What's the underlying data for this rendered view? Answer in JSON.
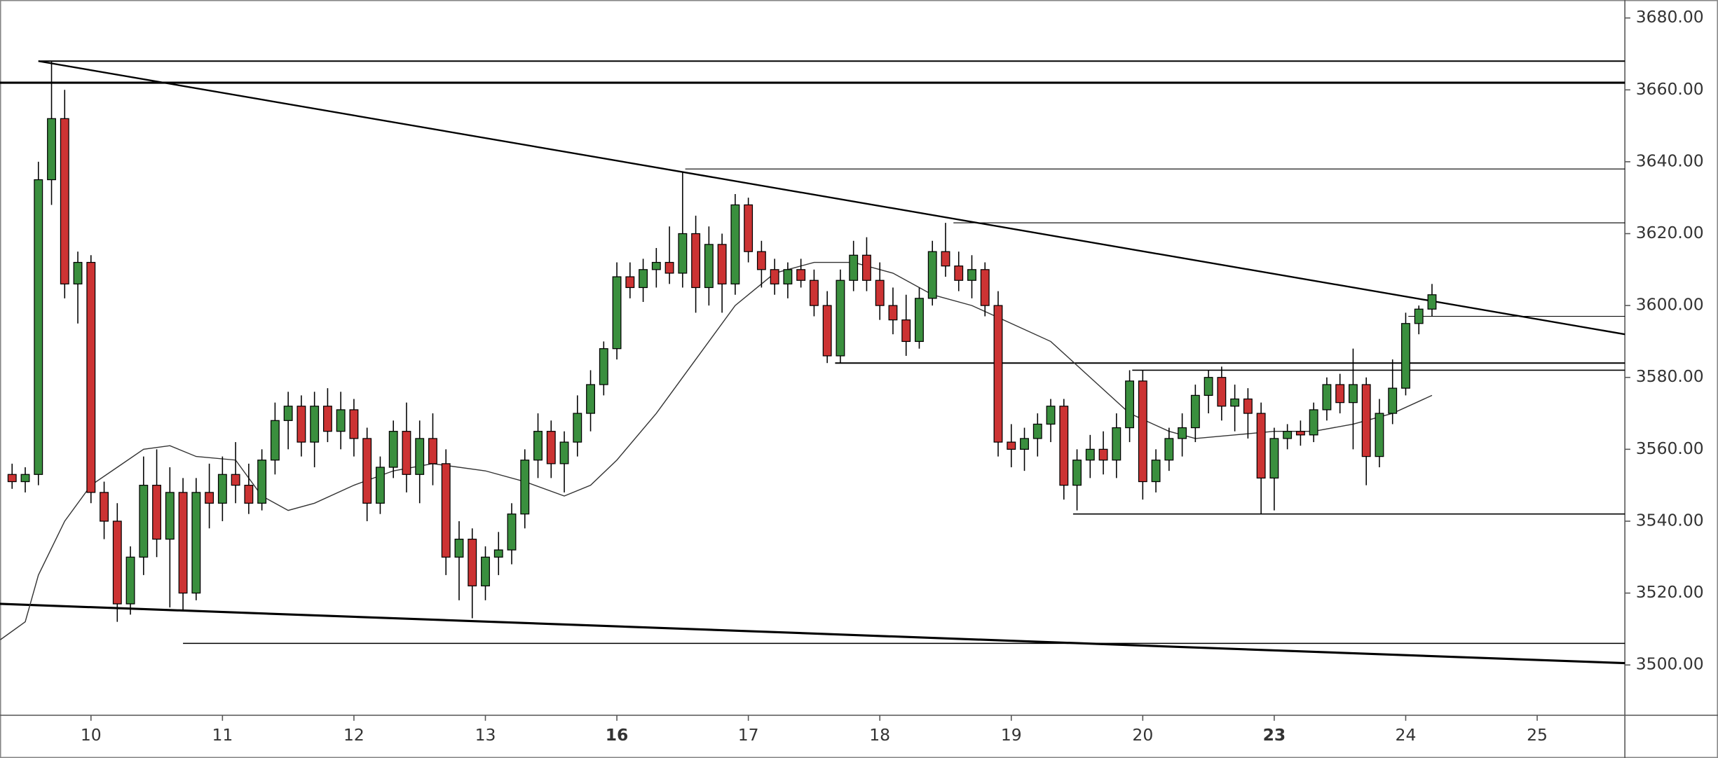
{
  "chart_data": {
    "type": "candlestick",
    "xlim": [
      -0.692,
      11.667
    ],
    "ylim": [
      3486,
      3685
    ],
    "xticks": [
      {
        "value": 0,
        "label": "10"
      },
      {
        "value": 1,
        "label": "11"
      },
      {
        "value": 2,
        "label": "12"
      },
      {
        "value": 3,
        "label": "13"
      },
      {
        "value": 4,
        "label": "16"
      },
      {
        "value": 5,
        "label": "17"
      },
      {
        "value": 6,
        "label": "18"
      },
      {
        "value": 7,
        "label": "19"
      },
      {
        "value": 8,
        "label": "20"
      },
      {
        "value": 9,
        "label": "23"
      },
      {
        "value": 10,
        "label": "24"
      },
      {
        "value": 11,
        "label": "25"
      }
    ],
    "bold_xticks": [
      4,
      9
    ],
    "yticks": [
      {
        "value": 3500,
        "label": "3500.00"
      },
      {
        "value": 3520,
        "label": "3520.00"
      },
      {
        "value": 3540,
        "label": "3540.00"
      },
      {
        "value": 3560,
        "label": "3560.00"
      },
      {
        "value": 3580,
        "label": "3580.00"
      },
      {
        "value": 3600,
        "label": "3600.00"
      },
      {
        "value": 3620,
        "label": "3620.00"
      },
      {
        "value": 3640,
        "label": "3640.00"
      },
      {
        "value": 3660,
        "label": "3660.00"
      },
      {
        "value": 3680,
        "label": "3680.00"
      }
    ],
    "up_color": "#3a8f3e",
    "down_color": "#cc3333",
    "wick_color": "#000000",
    "candles": [
      [
        -0.6,
        3553,
        3556,
        3549,
        3551
      ],
      [
        -0.5,
        3551,
        3555,
        3548,
        3553
      ],
      [
        -0.4,
        3553,
        3640,
        3550,
        3635
      ],
      [
        -0.3,
        3635,
        3668,
        3628,
        3652
      ],
      [
        -0.2,
        3652,
        3660,
        3602,
        3606
      ],
      [
        -0.1,
        3606,
        3615,
        3595,
        3612
      ],
      [
        0.0,
        3612,
        3614,
        3545,
        3548
      ],
      [
        0.1,
        3548,
        3551,
        3535,
        3540
      ],
      [
        0.2,
        3540,
        3545,
        3512,
        3517
      ],
      [
        0.3,
        3517,
        3533,
        3514,
        3530
      ],
      [
        0.4,
        3530,
        3558,
        3525,
        3550
      ],
      [
        0.5,
        3550,
        3560,
        3530,
        3535
      ],
      [
        0.6,
        3535,
        3555,
        3516,
        3548
      ],
      [
        0.7,
        3548,
        3552,
        3515,
        3520
      ],
      [
        0.8,
        3520,
        3552,
        3518,
        3548
      ],
      [
        0.9,
        3548,
        3556,
        3538,
        3545
      ],
      [
        1.0,
        3545,
        3558,
        3540,
        3553
      ],
      [
        1.1,
        3553,
        3562,
        3545,
        3550
      ],
      [
        1.2,
        3550,
        3556,
        3542,
        3545
      ],
      [
        1.3,
        3545,
        3560,
        3543,
        3557
      ],
      [
        1.4,
        3557,
        3573,
        3553,
        3568
      ],
      [
        1.5,
        3568,
        3576,
        3560,
        3572
      ],
      [
        1.6,
        3572,
        3575,
        3558,
        3562
      ],
      [
        1.7,
        3562,
        3576,
        3555,
        3572
      ],
      [
        1.8,
        3572,
        3577,
        3562,
        3565
      ],
      [
        1.9,
        3565,
        3576,
        3560,
        3571
      ],
      [
        2.0,
        3571,
        3574,
        3558,
        3563
      ],
      [
        2.1,
        3563,
        3566,
        3540,
        3545
      ],
      [
        2.2,
        3545,
        3558,
        3542,
        3555
      ],
      [
        2.3,
        3555,
        3568,
        3552,
        3565
      ],
      [
        2.4,
        3565,
        3573,
        3548,
        3553
      ],
      [
        2.5,
        3553,
        3568,
        3545,
        3563
      ],
      [
        2.6,
        3563,
        3570,
        3550,
        3556
      ],
      [
        2.7,
        3556,
        3560,
        3525,
        3530
      ],
      [
        2.8,
        3530,
        3540,
        3518,
        3535
      ],
      [
        2.9,
        3535,
        3538,
        3513,
        3522
      ],
      [
        3.0,
        3522,
        3533,
        3518,
        3530
      ],
      [
        3.1,
        3530,
        3537,
        3525,
        3532
      ],
      [
        3.2,
        3532,
        3545,
        3528,
        3542
      ],
      [
        3.3,
        3542,
        3560,
        3538,
        3557
      ],
      [
        3.4,
        3557,
        3570,
        3552,
        3565
      ],
      [
        3.5,
        3565,
        3568,
        3552,
        3556
      ],
      [
        3.6,
        3556,
        3565,
        3548,
        3562
      ],
      [
        3.7,
        3562,
        3575,
        3558,
        3570
      ],
      [
        3.8,
        3570,
        3582,
        3565,
        3578
      ],
      [
        3.9,
        3578,
        3590,
        3575,
        3588
      ],
      [
        4.0,
        3588,
        3612,
        3585,
        3608
      ],
      [
        4.1,
        3608,
        3612,
        3602,
        3605
      ],
      [
        4.2,
        3605,
        3613,
        3601,
        3610
      ],
      [
        4.3,
        3610,
        3616,
        3605,
        3612
      ],
      [
        4.4,
        3612,
        3622,
        3606,
        3609
      ],
      [
        4.5,
        3609,
        3637,
        3605,
        3620
      ],
      [
        4.6,
        3620,
        3625,
        3598,
        3605
      ],
      [
        4.7,
        3605,
        3622,
        3600,
        3617
      ],
      [
        4.8,
        3617,
        3620,
        3598,
        3606
      ],
      [
        4.9,
        3606,
        3631,
        3603,
        3628
      ],
      [
        5.0,
        3628,
        3630,
        3612,
        3615
      ],
      [
        5.1,
        3615,
        3618,
        3605,
        3610
      ],
      [
        5.2,
        3610,
        3613,
        3603,
        3606
      ],
      [
        5.3,
        3606,
        3612,
        3602,
        3610
      ],
      [
        5.4,
        3610,
        3613,
        3605,
        3607
      ],
      [
        5.5,
        3607,
        3610,
        3597,
        3600
      ],
      [
        5.6,
        3600,
        3604,
        3584,
        3586
      ],
      [
        5.7,
        3586,
        3610,
        3584,
        3607
      ],
      [
        5.8,
        3607,
        3618,
        3604,
        3614
      ],
      [
        5.9,
        3614,
        3619,
        3604,
        3607
      ],
      [
        6.0,
        3607,
        3612,
        3596,
        3600
      ],
      [
        6.1,
        3600,
        3605,
        3592,
        3596
      ],
      [
        6.2,
        3596,
        3603,
        3586,
        3590
      ],
      [
        6.3,
        3590,
        3605,
        3588,
        3602
      ],
      [
        6.4,
        3602,
        3618,
        3600,
        3615
      ],
      [
        6.5,
        3615,
        3623,
        3608,
        3611
      ],
      [
        6.6,
        3611,
        3615,
        3604,
        3607
      ],
      [
        6.7,
        3607,
        3614,
        3602,
        3610
      ],
      [
        6.8,
        3610,
        3612,
        3597,
        3600
      ],
      [
        6.9,
        3600,
        3604,
        3558,
        3562
      ],
      [
        7.0,
        3562,
        3567,
        3555,
        3560
      ],
      [
        7.1,
        3560,
        3566,
        3554,
        3563
      ],
      [
        7.2,
        3563,
        3570,
        3558,
        3567
      ],
      [
        7.3,
        3567,
        3574,
        3562,
        3572
      ],
      [
        7.4,
        3572,
        3574,
        3546,
        3550
      ],
      [
        7.5,
        3550,
        3560,
        3543,
        3557
      ],
      [
        7.6,
        3557,
        3564,
        3552,
        3560
      ],
      [
        7.7,
        3560,
        3565,
        3553,
        3557
      ],
      [
        7.8,
        3557,
        3570,
        3552,
        3566
      ],
      [
        7.9,
        3566,
        3582,
        3562,
        3579
      ],
      [
        8.0,
        3579,
        3582,
        3546,
        3551
      ],
      [
        8.1,
        3551,
        3560,
        3548,
        3557
      ],
      [
        8.2,
        3557,
        3566,
        3554,
        3563
      ],
      [
        8.3,
        3563,
        3570,
        3558,
        3566
      ],
      [
        8.4,
        3566,
        3578,
        3562,
        3575
      ],
      [
        8.5,
        3575,
        3582,
        3570,
        3580
      ],
      [
        8.6,
        3580,
        3583,
        3568,
        3572
      ],
      [
        8.7,
        3572,
        3578,
        3565,
        3574
      ],
      [
        8.8,
        3574,
        3577,
        3563,
        3570
      ],
      [
        8.9,
        3570,
        3573,
        3542,
        3552
      ],
      [
        9.0,
        3552,
        3566,
        3543,
        3563
      ],
      [
        9.1,
        3563,
        3567,
        3560,
        3565
      ],
      [
        9.2,
        3565,
        3568,
        3561,
        3564
      ],
      [
        9.3,
        3564,
        3573,
        3562,
        3571
      ],
      [
        9.4,
        3571,
        3580,
        3568,
        3578
      ],
      [
        9.5,
        3578,
        3581,
        3570,
        3573
      ],
      [
        9.6,
        3573,
        3588,
        3560,
        3578
      ],
      [
        9.7,
        3578,
        3580,
        3550,
        3558
      ],
      [
        9.8,
        3558,
        3574,
        3555,
        3570
      ],
      [
        9.9,
        3570,
        3585,
        3567,
        3577
      ],
      [
        10.0,
        3577,
        3598,
        3575,
        3595
      ],
      [
        10.1,
        3595,
        3600,
        3592,
        3599
      ],
      [
        10.2,
        3599,
        3606,
        3597,
        3603
      ]
    ],
    "moving_average": {
      "color": "#333333",
      "x": [
        -0.69,
        -0.5,
        -0.4,
        -0.2,
        0,
        0.2,
        0.4,
        0.6,
        0.8,
        1.1,
        1.3,
        1.5,
        1.7,
        2.0,
        2.3,
        2.6,
        3.0,
        3.3,
        3.6,
        3.8,
        4.0,
        4.3,
        4.6,
        4.9,
        5.2,
        5.5,
        5.8,
        6.1,
        6.4,
        6.7,
        7.0,
        7.3,
        7.6,
        7.9,
        8.2,
        8.4,
        8.7,
        9.0,
        9.3,
        9.6,
        9.9,
        10.2
      ],
      "values": [
        3507,
        3512,
        3525,
        3540,
        3550,
        3555,
        3560,
        3561,
        3558,
        3557,
        3547,
        3543,
        3545,
        3550,
        3554,
        3556,
        3554,
        3551,
        3547,
        3550,
        3557,
        3570,
        3585,
        3600,
        3609,
        3612,
        3612,
        3609,
        3603,
        3600,
        3595,
        3590,
        3580,
        3570,
        3565,
        3563,
        3564,
        3565,
        3565,
        3567,
        3570,
        3575
      ]
    },
    "lines": [
      {
        "x": [
          -0.4,
          11.667
        ],
        "y": [
          3668,
          3668
        ],
        "width": 1.3
      },
      {
        "x": [
          -0.692,
          11.667
        ],
        "y": [
          3662,
          3662
        ],
        "width": 2
      },
      {
        "x": [
          4.52,
          11.667
        ],
        "y": [
          3638,
          3638
        ],
        "width": 0.7
      },
      {
        "x": [
          6.56,
          11.667
        ],
        "y": [
          3623,
          3623
        ],
        "width": 0.7
      },
      {
        "x": [
          10.02,
          11.667
        ],
        "y": [
          3597,
          3597
        ],
        "width": 0.7
      },
      {
        "x": [
          5.66,
          11.667
        ],
        "y": [
          3584,
          3584
        ],
        "width": 1.3
      },
      {
        "x": [
          7.92,
          11.667
        ],
        "y": [
          3582,
          3582
        ],
        "width": 1
      },
      {
        "x": [
          7.47,
          11.667
        ],
        "y": [
          3542,
          3542
        ],
        "width": 1
      },
      {
        "x": [
          0.7,
          11.667
        ],
        "y": [
          3506,
          3506
        ],
        "width": 1
      },
      {
        "x": [
          -0.4,
          11.667
        ],
        "y": [
          3668,
          3592
        ],
        "width": 1.5
      },
      {
        "x": [
          -0.692,
          11.667
        ],
        "y": [
          3517,
          3500.5
        ],
        "width": 2
      }
    ]
  }
}
